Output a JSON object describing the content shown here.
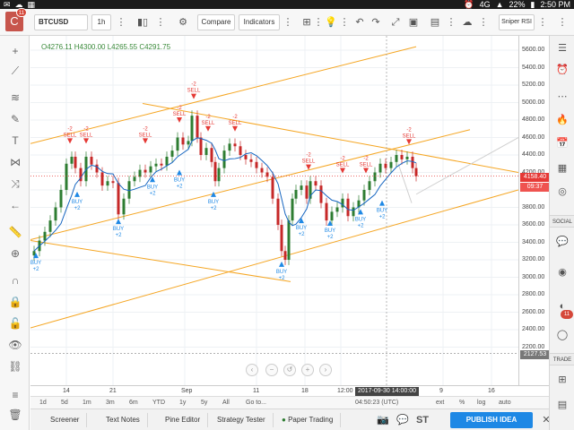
{
  "statusbar": {
    "signal": "4G",
    "battery": "22%",
    "time": "2:50 PM",
    "left_icons": [
      "notification-icon",
      "cloud-icon",
      "mail-icon",
      "settings-icon",
      "apps-icon",
      "photo-icon",
      "bag-icon"
    ]
  },
  "app": {
    "badge": "11",
    "logo_letter": "C"
  },
  "toolbar": {
    "symbol": "BTCUSD",
    "interval": "1h",
    "compare_label": "Compare",
    "indicators_label": "Indicators",
    "sniper_label": "Sniper RSI"
  },
  "ohlc": {
    "open": "O4276.11",
    "high": "H4300.00",
    "low": "L4265.55",
    "close": "C4291.75"
  },
  "price_axis": {
    "ticks": [
      "5600.00",
      "5400.00",
      "5200.00",
      "5000.00",
      "4800.00",
      "4600.00",
      "4400.00",
      "4200.00",
      "4000.00",
      "3800.00",
      "3600.00",
      "3400.00",
      "3200.00",
      "3000.00",
      "2800.00",
      "2600.00",
      "2400.00",
      "2200.00"
    ],
    "last_price": "4158.40",
    "countdown": "09:37",
    "cross_price": "2127.53"
  },
  "time_axis": {
    "ticks": [
      "14",
      "21",
      "Sep",
      "11",
      "18",
      "12:00",
      "9",
      "16"
    ],
    "cross_date": "2017-09-30 14:00:00"
  },
  "range_bar": {
    "ranges": [
      "1d",
      "5d",
      "1m",
      "3m",
      "6m",
      "YTD",
      "1y",
      "5y",
      "All",
      "Go to..."
    ],
    "clock": "04:50:23 (UTC)",
    "ext": "ext",
    "pct": "%",
    "log": "log",
    "auto": "auto"
  },
  "bottom_bar": {
    "screener": "Screener",
    "text_notes": "Text Notes",
    "pine_editor": "Pine Editor",
    "strategy_tester": "Strategy Tester",
    "paper_trading": "Paper Trading",
    "publish": "PUBLISH IDEA"
  },
  "right_tools": {
    "social_label": "SOCIAL",
    "trade_label": "TRADE",
    "badge": "11"
  },
  "chart_data": {
    "type": "candlestick",
    "instrument": "BTCUSD",
    "interval": "1h",
    "ylim": [
      2100,
      5700
    ],
    "signals": [
      {
        "label": "SELL",
        "value": "-2"
      },
      {
        "label": "BUY",
        "value": "+2"
      }
    ],
    "sell_label": "SELL",
    "buy_label": "BUY",
    "sell_value": "-2",
    "buy_value": "+2",
    "colors": {
      "up": "#2e7d32",
      "down": "#c62828",
      "ma": "#1565c0",
      "channel": "#f5a623",
      "last_price_line": "#e53935"
    }
  }
}
